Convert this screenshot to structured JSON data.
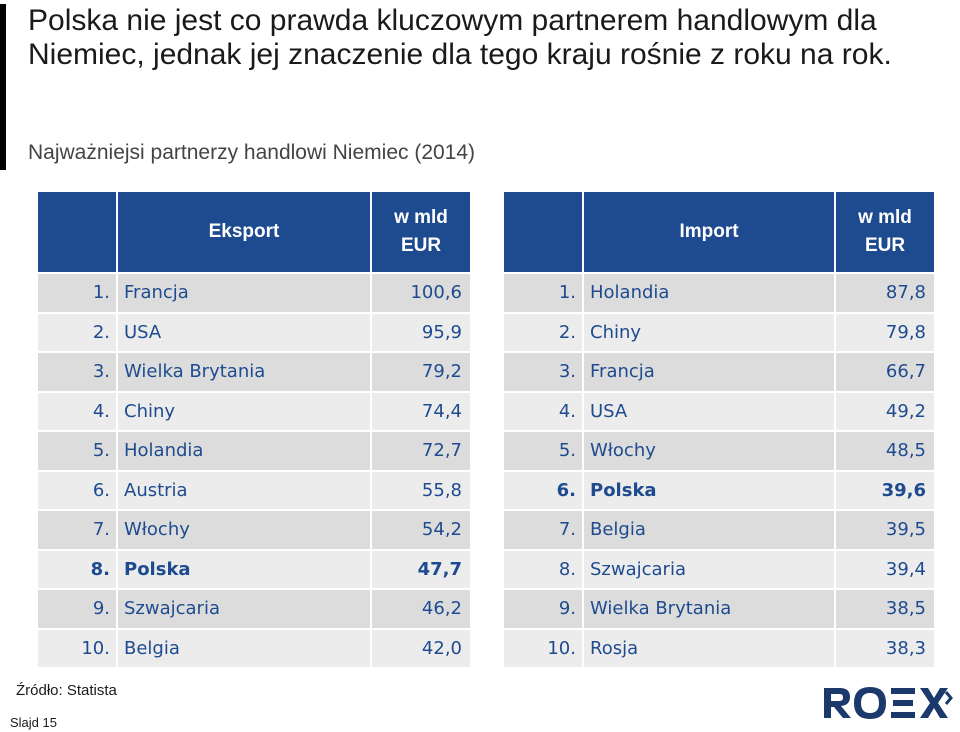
{
  "headline": "Polska nie jest co prawda kluczowym partnerem handlowym dla Niemiec, jednak jej znaczenie dla tego kraju rośnie z roku na rok.",
  "subtitle": "Najważniejsi partnerzy handlowi Niemiec (2014)",
  "export": {
    "header": {
      "title": "Eksport",
      "unit_line1": "w mld",
      "unit_line2": "EUR"
    },
    "rows": [
      {
        "rank": "1.",
        "country": "Francja",
        "value": "100,6",
        "highlight": false
      },
      {
        "rank": "2.",
        "country": "USA",
        "value": "95,9",
        "highlight": false
      },
      {
        "rank": "3.",
        "country": "Wielka Brytania",
        "value": "79,2",
        "highlight": false
      },
      {
        "rank": "4.",
        "country": "Chiny",
        "value": "74,4",
        "highlight": false
      },
      {
        "rank": "5.",
        "country": "Holandia",
        "value": "72,7",
        "highlight": false
      },
      {
        "rank": "6.",
        "country": "Austria",
        "value": "55,8",
        "highlight": false
      },
      {
        "rank": "7.",
        "country": "Włochy",
        "value": "54,2",
        "highlight": false
      },
      {
        "rank": "8.",
        "country": "Polska",
        "value": "47,7",
        "highlight": true
      },
      {
        "rank": "9.",
        "country": "Szwajcaria",
        "value": "46,2",
        "highlight": false
      },
      {
        "rank": "10.",
        "country": "Belgia",
        "value": "42,0",
        "highlight": false
      }
    ]
  },
  "import": {
    "header": {
      "title": "Import",
      "unit_line1": "w mld",
      "unit_line2": "EUR"
    },
    "rows": [
      {
        "rank": "1.",
        "country": "Holandia",
        "value": "87,8",
        "highlight": false
      },
      {
        "rank": "2.",
        "country": "Chiny",
        "value": "79,8",
        "highlight": false
      },
      {
        "rank": "3.",
        "country": "Francja",
        "value": "66,7",
        "highlight": false
      },
      {
        "rank": "4.",
        "country": "USA",
        "value": "49,2",
        "highlight": false
      },
      {
        "rank": "5.",
        "country": "Włochy",
        "value": "48,5",
        "highlight": false
      },
      {
        "rank": "6.",
        "country": "Polska",
        "value": "39,6",
        "highlight": true
      },
      {
        "rank": "7.",
        "country": "Belgia",
        "value": "39,5",
        "highlight": false
      },
      {
        "rank": "8.",
        "country": "Szwajcaria",
        "value": "39,4",
        "highlight": false
      },
      {
        "rank": "9.",
        "country": "Wielka Brytania",
        "value": "38,5",
        "highlight": false
      },
      {
        "rank": "10.",
        "country": "Rosja",
        "value": "38,3",
        "highlight": false
      }
    ]
  },
  "source": "Źródło: Statista",
  "slide_number": "Slajd 15",
  "logo_text": "ROEX",
  "colors": {
    "header_blue": "#1e4b8f",
    "row_dark": "#dcdcdc",
    "row_light": "#ececec",
    "logo_dark": "#1b3a6b"
  }
}
